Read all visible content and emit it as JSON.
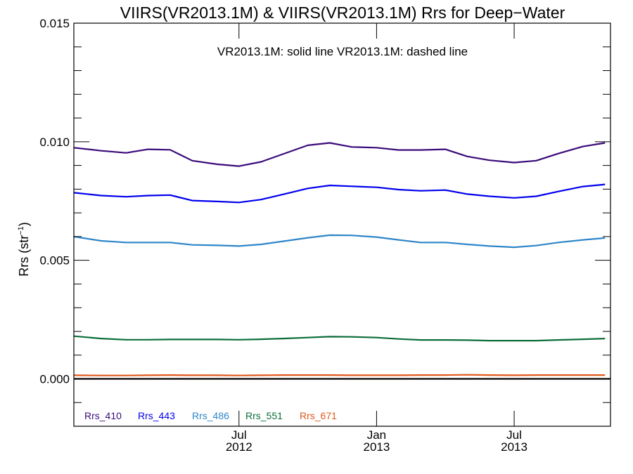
{
  "chart_data": {
    "type": "line",
    "title": "VIIRS(VR2013.1M) & VIIRS(VR2013.1M)  Rrs for Deep−Water",
    "annotation": "VR2013.1M: solid line   VR2013.1M: dashed line",
    "ylabel_main": "Rrs (str",
    "ylabel_sup": "−1",
    "ylabel_end": ")",
    "ylim": [
      -0.002,
      0.015
    ],
    "yticks": [
      0.0,
      0.005,
      0.01,
      0.015
    ],
    "ytick_labels": [
      "0.000",
      "0.005",
      "0.010",
      "0.015"
    ],
    "xlim": [
      2011.9,
      2013.85
    ],
    "xticks": [
      {
        "x": 2012.5,
        "month": "Jul",
        "year": "2012"
      },
      {
        "x": 2013.0,
        "month": "Jan",
        "year": "2013"
      },
      {
        "x": 2013.5,
        "month": "Jul",
        "year": "2013"
      }
    ],
    "zero_line": 0.0,
    "x": [
      2011.9,
      2012.0,
      2012.09,
      2012.17,
      2012.25,
      2012.33,
      2012.42,
      2012.5,
      2012.58,
      2012.66,
      2012.75,
      2012.83,
      2012.91,
      2013.0,
      2013.08,
      2013.16,
      2013.25,
      2013.33,
      2013.41,
      2013.5,
      2013.58,
      2013.66,
      2013.75,
      2013.83
    ],
    "series": [
      {
        "name": "Rrs_410",
        "color": "#3b0a7a",
        "values": [
          0.00975,
          0.00962,
          0.00953,
          0.00968,
          0.00966,
          0.0092,
          0.00905,
          0.00897,
          0.00915,
          0.00948,
          0.00985,
          0.00995,
          0.00978,
          0.00975,
          0.00965,
          0.00965,
          0.00968,
          0.00938,
          0.00922,
          0.00912,
          0.0092,
          0.0095,
          0.0098,
          0.00995
        ]
      },
      {
        "name": "Rrs_443",
        "color": "#0000ee",
        "values": [
          0.00785,
          0.00773,
          0.00768,
          0.00773,
          0.00775,
          0.00752,
          0.00748,
          0.00744,
          0.00756,
          0.00778,
          0.00803,
          0.00816,
          0.00812,
          0.00808,
          0.00798,
          0.00793,
          0.00796,
          0.00779,
          0.0077,
          0.00763,
          0.0077,
          0.0079,
          0.00811,
          0.0082
        ]
      },
      {
        "name": "Rrs_486",
        "color": "#2e86c8",
        "values": [
          0.006,
          0.00582,
          0.00575,
          0.00575,
          0.00575,
          0.00565,
          0.00563,
          0.0056,
          0.00567,
          0.0058,
          0.00595,
          0.00606,
          0.00605,
          0.00598,
          0.00586,
          0.00575,
          0.00575,
          0.00567,
          0.0056,
          0.00555,
          0.00562,
          0.00575,
          0.00586,
          0.00594
        ]
      },
      {
        "name": "Rrs_551",
        "color": "#0b6e3a",
        "values": [
          0.0018,
          0.0017,
          0.00165,
          0.00165,
          0.00166,
          0.00166,
          0.00166,
          0.00165,
          0.00167,
          0.0017,
          0.00174,
          0.00178,
          0.00177,
          0.00174,
          0.00168,
          0.00164,
          0.00164,
          0.00163,
          0.00161,
          0.00161,
          0.00161,
          0.00164,
          0.00167,
          0.0017
        ]
      },
      {
        "name": "Rrs_671",
        "color": "#e0581a",
        "values": [
          0.00015,
          0.00014,
          0.00014,
          0.00015,
          0.00016,
          0.00015,
          0.00015,
          0.00014,
          0.00015,
          0.00016,
          0.00016,
          0.00016,
          0.00015,
          0.00015,
          0.00015,
          0.00016,
          0.00016,
          0.00017,
          0.00016,
          0.00015,
          0.00016,
          0.00016,
          0.00016,
          0.00016
        ]
      }
    ]
  }
}
